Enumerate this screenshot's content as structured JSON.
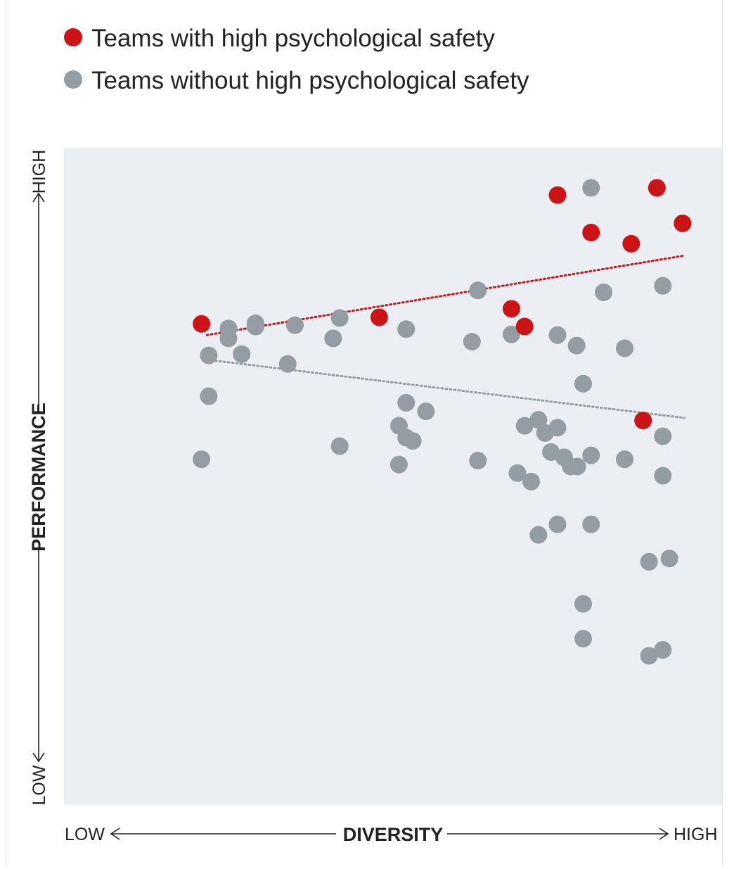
{
  "legend": {
    "items": [
      {
        "label": "Teams with high psychological safety",
        "color": "#cc1417"
      },
      {
        "label": "Teams without high psychological safety",
        "color": "#939da3"
      }
    ]
  },
  "chart_data": {
    "type": "scatter",
    "xlabel": "DIVERSITY",
    "ylabel": "PERFORMANCE",
    "x_low_label": "LOW",
    "x_high_label": "HIGH",
    "y_low_label": "LOW",
    "y_high_label": "HIGH",
    "xlim": [
      0,
      100
    ],
    "ylim": [
      0,
      100
    ],
    "grid": false,
    "legend_position": "top-left",
    "plot_background": "#ebeef2",
    "series": [
      {
        "name": "Teams with high psychological safety",
        "color": "#cc1417",
        "points": [
          [
            20.9,
            73.2
          ],
          [
            47.9,
            74.2
          ],
          [
            68.0,
            75.5
          ],
          [
            70.0,
            72.8
          ],
          [
            75.0,
            92.8
          ],
          [
            80.1,
            87.1
          ],
          [
            86.2,
            85.4
          ],
          [
            90.1,
            93.9
          ],
          [
            94.0,
            88.5
          ],
          [
            88.0,
            58.5
          ]
        ],
        "trend": [
          [
            21.7,
            71.5
          ],
          [
            94.3,
            83.6
          ]
        ]
      },
      {
        "name": "Teams without high psychological safety",
        "color": "#939da3",
        "points": [
          [
            22.0,
            68.4
          ],
          [
            22.0,
            62.2
          ],
          [
            20.9,
            52.6
          ],
          [
            25.0,
            72.5
          ],
          [
            25.0,
            71.0
          ],
          [
            29.1,
            72.8
          ],
          [
            29.1,
            73.3
          ],
          [
            27.0,
            68.6
          ],
          [
            35.1,
            73.0
          ],
          [
            34.0,
            67.1
          ],
          [
            40.9,
            71.0
          ],
          [
            41.9,
            74.1
          ],
          [
            41.9,
            54.6
          ],
          [
            52.0,
            72.4
          ],
          [
            52.0,
            61.2
          ],
          [
            55.0,
            59.9
          ],
          [
            50.9,
            57.7
          ],
          [
            52.0,
            55.9
          ],
          [
            53.0,
            55.4
          ],
          [
            50.9,
            51.8
          ],
          [
            62.0,
            70.5
          ],
          [
            62.9,
            78.3
          ],
          [
            62.9,
            52.4
          ],
          [
            68.0,
            71.6
          ],
          [
            70.0,
            57.7
          ],
          [
            72.1,
            58.6
          ],
          [
            73.1,
            56.6
          ],
          [
            75.0,
            57.4
          ],
          [
            68.9,
            50.5
          ],
          [
            71.0,
            49.2
          ],
          [
            74.0,
            53.7
          ],
          [
            76.0,
            52.9
          ],
          [
            77.0,
            51.5
          ],
          [
            78.0,
            51.5
          ],
          [
            80.1,
            53.2
          ],
          [
            75.0,
            71.5
          ],
          [
            77.9,
            69.9
          ],
          [
            78.9,
            64.1
          ],
          [
            80.1,
            93.9
          ],
          [
            82.0,
            78.0
          ],
          [
            85.2,
            69.5
          ],
          [
            85.2,
            52.6
          ],
          [
            91.0,
            79.0
          ],
          [
            91.0,
            56.1
          ],
          [
            91.0,
            50.1
          ],
          [
            78.9,
            30.6
          ],
          [
            80.1,
            42.7
          ],
          [
            75.0,
            42.7
          ],
          [
            72.1,
            41.1
          ],
          [
            88.9,
            37.0
          ],
          [
            92.0,
            37.5
          ],
          [
            88.9,
            22.7
          ],
          [
            91.0,
            23.6
          ],
          [
            78.9,
            25.3
          ]
        ],
        "trend": [
          [
            23.0,
            67.6
          ],
          [
            94.3,
            58.9
          ]
        ]
      }
    ]
  }
}
